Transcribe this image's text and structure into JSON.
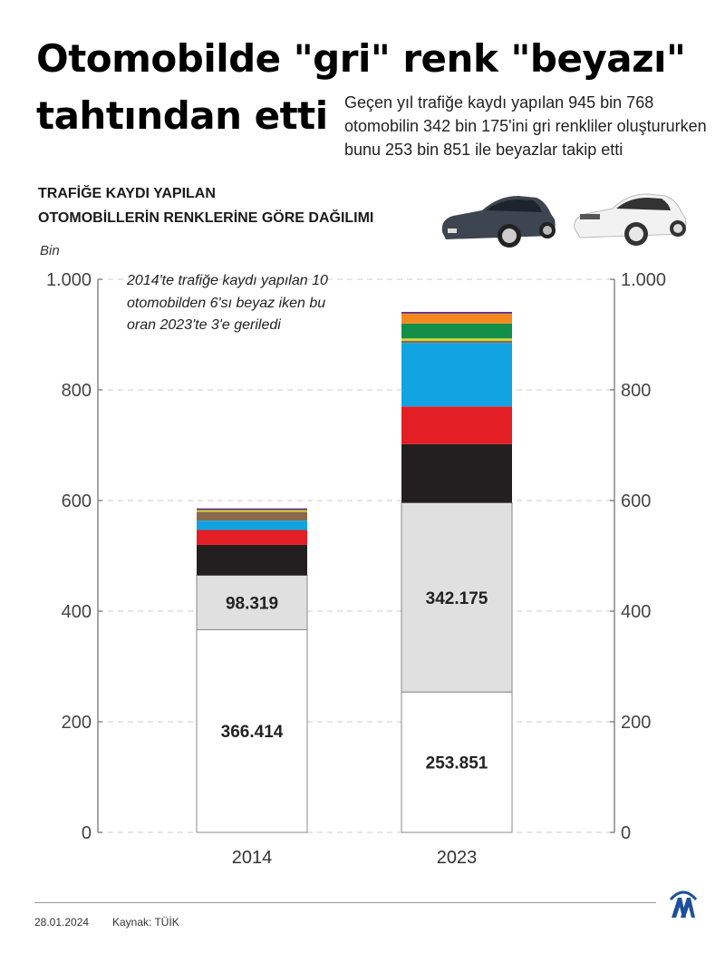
{
  "header": {
    "title_line1": "Otomobilde \"gri\" renk \"beyazı\"",
    "title_line2": "tahtından etti",
    "summary": "Geçen yıl trafiğe kaydı yapılan 945 bin 768 otomobilin 342 bin 175'ini gri renkliler oluştururken bunu 253 bin 851 ile beyazlar takip etti",
    "subtitle_line1": "TRAFİĞE KAYDI YAPILAN",
    "subtitle_line2": "OTOMOBİLLERİN RENKLERİNE GÖRE DAĞILIMI"
  },
  "annotation": "2014'te trafiğe kaydı yapılan 10 otomobilden 6'sı beyaz iken bu oran 2023'te 3'e geriledi",
  "footer": {
    "date": "28.01.2024",
    "source": "Kaynak: TÜİK",
    "logo": "AA"
  },
  "chart_data": {
    "type": "bar",
    "stacked": true,
    "title": "TRAFİĞE KAYDI YAPILAN OTOMOBİLLERİN RENKLERİNE GÖRE DAĞILIMI",
    "ylabel": "Bin",
    "xlabel": "",
    "ylim": [
      0,
      1000
    ],
    "yticks": [
      0,
      200,
      400,
      600,
      800,
      1000
    ],
    "ytick_labels": [
      "0",
      "200",
      "400",
      "600",
      "800",
      "1.000"
    ],
    "grid": true,
    "categories": [
      "2014",
      "2023"
    ],
    "series": [
      {
        "name": "Beyaz",
        "color": "#ffffff",
        "values": [
          366.414,
          253.851
        ],
        "labels": [
          "366.414",
          "253.851"
        ]
      },
      {
        "name": "Gri",
        "color": "#e0e0e0",
        "values": [
          98.319,
          342.175
        ],
        "labels": [
          "98.319",
          "342.175"
        ]
      },
      {
        "name": "Siyah",
        "color": "#231f20",
        "values": [
          55,
          106
        ],
        "labels": [
          "",
          ""
        ]
      },
      {
        "name": "Kırmızı",
        "color": "#e31e24",
        "values": [
          27,
          68
        ],
        "labels": [
          "",
          ""
        ]
      },
      {
        "name": "Mavi",
        "color": "#12a3e2",
        "values": [
          17,
          115
        ],
        "labels": [
          "",
          ""
        ]
      },
      {
        "name": "Kahverengi",
        "color": "#8a6a4a",
        "values": [
          16,
          4
        ],
        "labels": [
          "",
          ""
        ]
      },
      {
        "name": "Sarı",
        "color": "#d7dc2c",
        "values": [
          3,
          4
        ],
        "labels": [
          "",
          ""
        ]
      },
      {
        "name": "Yeşil",
        "color": "#148f4a",
        "values": [
          0,
          27
        ],
        "labels": [
          "",
          ""
        ]
      },
      {
        "name": "Turuncu",
        "color": "#f28a20",
        "values": [
          0,
          18
        ],
        "labels": [
          "",
          ""
        ]
      },
      {
        "name": "Mor / Diğer",
        "color": "#5b2d86",
        "values": [
          3,
          3
        ],
        "labels": [
          "",
          ""
        ]
      }
    ]
  }
}
